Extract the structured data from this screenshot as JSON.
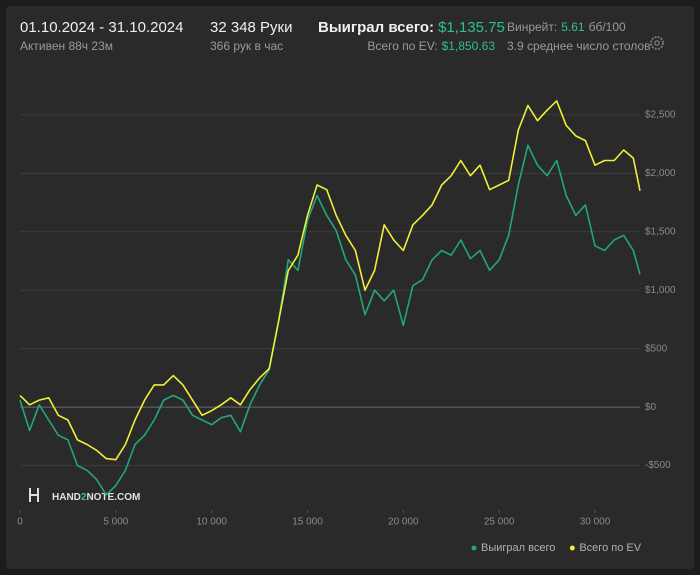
{
  "header": {
    "date_range": "01.10.2024 - 31.10.2024",
    "active": "Активен 88ч 23м",
    "hands": "32 348 Руки",
    "hands_per_hour": "366 рук в час",
    "won_label": "Выиграл всего:",
    "won_value": "$1,135.75",
    "ev_label": "Всего по EV:",
    "ev_value": "$1,850.63",
    "winrate_label": "Винрейт:",
    "winrate_value": "5.61",
    "winrate_unit": "бб/100",
    "tables": "3.9 среднее число столов"
  },
  "logo": [
    "HAND",
    "2",
    "NOTE.COM"
  ],
  "chart_data": {
    "type": "line",
    "x": [
      0,
      500,
      1000,
      1500,
      2000,
      2500,
      3000,
      3500,
      4000,
      4500,
      5000,
      5500,
      6000,
      6500,
      7000,
      7500,
      8000,
      8500,
      9000,
      9500,
      10000,
      10500,
      11000,
      11500,
      12000,
      12500,
      13000,
      13500,
      14000,
      14500,
      15000,
      15500,
      16000,
      16500,
      17000,
      17500,
      18000,
      18500,
      19000,
      19500,
      20000,
      20500,
      21000,
      21500,
      22000,
      22500,
      23000,
      23500,
      24000,
      24500,
      25000,
      25500,
      26000,
      26500,
      27000,
      27500,
      28000,
      28500,
      29000,
      29500,
      30000,
      30500,
      31000,
      31500,
      32000,
      32348
    ],
    "series": [
      {
        "name": "Выиграл всего",
        "color": "#22a67a",
        "values": [
          60,
          -200,
          20,
          -110,
          -240,
          -280,
          -500,
          -540,
          -620,
          -750,
          -670,
          -540,
          -320,
          -240,
          -110,
          60,
          100,
          60,
          -70,
          -110,
          -150,
          -90,
          -70,
          -210,
          20,
          190,
          320,
          740,
          1260,
          1170,
          1600,
          1810,
          1640,
          1510,
          1260,
          1130,
          790,
          1000,
          910,
          1000,
          700,
          1040,
          1090,
          1260,
          1340,
          1300,
          1430,
          1270,
          1340,
          1170,
          1260,
          1470,
          1900,
          2240,
          2070,
          1980,
          2110,
          1810,
          1640,
          1730,
          1380,
          1340,
          1430,
          1470,
          1340,
          1135.75
        ]
      },
      {
        "name": "Всего по EV",
        "color": "#f0ee3a",
        "values": [
          100,
          20,
          60,
          80,
          -70,
          -110,
          -280,
          -320,
          -370,
          -440,
          -450,
          -320,
          -110,
          60,
          190,
          190,
          270,
          190,
          60,
          -70,
          -30,
          20,
          80,
          20,
          150,
          250,
          330,
          740,
          1170,
          1300,
          1640,
          1900,
          1860,
          1640,
          1470,
          1340,
          1000,
          1170,
          1560,
          1430,
          1340,
          1560,
          1640,
          1730,
          1900,
          1980,
          2110,
          1980,
          2070,
          1860,
          1900,
          1940,
          2370,
          2580,
          2450,
          2540,
          2620,
          2410,
          2320,
          2280,
          2070,
          2110,
          2110,
          2200,
          2130,
          1850.63
        ]
      }
    ],
    "xlim": [
      0,
      32348
    ],
    "ylim": [
      -880,
      2730
    ],
    "xticks": [
      0,
      {
        "value": 5000,
        "label": "5 000"
      },
      {
        "value": 10000,
        "label": "10 000"
      },
      {
        "value": 15000,
        "label": "15 000"
      },
      {
        "value": 20000,
        "label": "20 000"
      },
      {
        "value": 25000,
        "label": "25 000"
      },
      {
        "value": 30000,
        "label": "30 000"
      }
    ],
    "yticks": [
      {
        "value": -500,
        "label": "-$500"
      },
      {
        "value": 0,
        "label": "$0"
      },
      {
        "value": 500,
        "label": "$500"
      },
      {
        "value": 1000,
        "label": "$1,000"
      },
      {
        "value": 1500,
        "label": "$1,500"
      },
      {
        "value": 2000,
        "label": "$2,000"
      },
      {
        "value": 2500,
        "label": "$2,500"
      }
    ],
    "grid": true,
    "legend": "bottom-right"
  }
}
